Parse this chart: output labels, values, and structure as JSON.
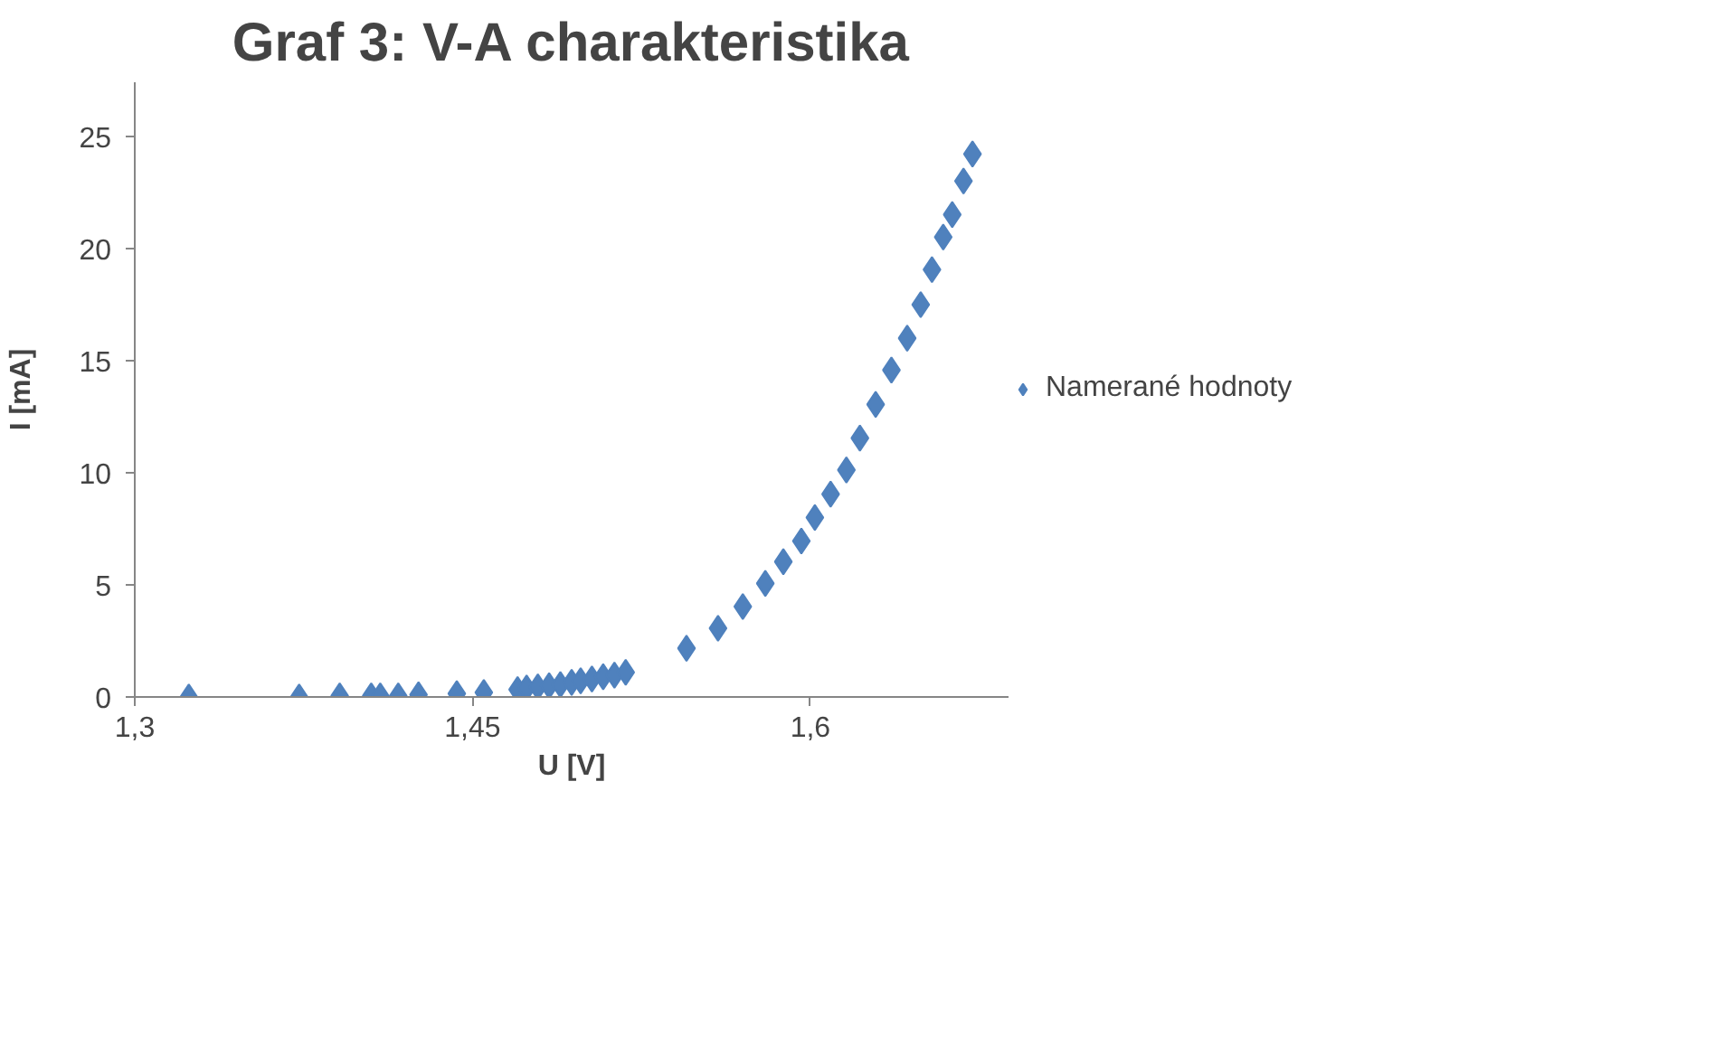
{
  "chart_data": {
    "type": "scatter",
    "title": "Graf 3: V-A charakteristika",
    "xlabel": "U [V]",
    "ylabel": "I [mA]",
    "x": [
      1.324,
      1.373,
      1.391,
      1.405,
      1.409,
      1.417,
      1.426,
      1.443,
      1.455,
      1.47,
      1.474,
      1.479,
      1.484,
      1.489,
      1.494,
      1.498,
      1.503,
      1.508,
      1.513,
      1.518,
      1.545,
      1.559,
      1.57,
      1.58,
      1.588,
      1.596,
      1.602,
      1.609,
      1.616,
      1.622,
      1.629,
      1.636,
      1.643,
      1.649,
      1.654,
      1.659,
      1.663,
      1.668,
      1.672
    ],
    "series": [
      {
        "name": "Namerané hodnoty",
        "color": "#4f81bd",
        "values": [
          0,
          0,
          0.05,
          0.05,
          0.05,
          0.05,
          0.1,
          0.15,
          0.2,
          0.33,
          0.4,
          0.45,
          0.5,
          0.55,
          0.65,
          0.72,
          0.8,
          0.9,
          0.97,
          1.1,
          2.17,
          3.06,
          4.03,
          5.06,
          6.03,
          6.95,
          8.0,
          9.04,
          10.12,
          11.54,
          13.04,
          14.57,
          15.99,
          17.49,
          19.05,
          20.5,
          21.5,
          23.0,
          24.2
        ]
      }
    ],
    "xlim": [
      1.3,
      1.688
    ],
    "xticks": [
      {
        "value": 1.3,
        "label": "1,3"
      },
      {
        "value": 1.45,
        "label": "1,45"
      },
      {
        "value": 1.6,
        "label": "1,6"
      }
    ],
    "ylim": [
      0,
      27.4
    ],
    "yticks": [
      0,
      5,
      10,
      15,
      20,
      25
    ],
    "marker": "diamond",
    "legend": "right",
    "grid": false
  }
}
